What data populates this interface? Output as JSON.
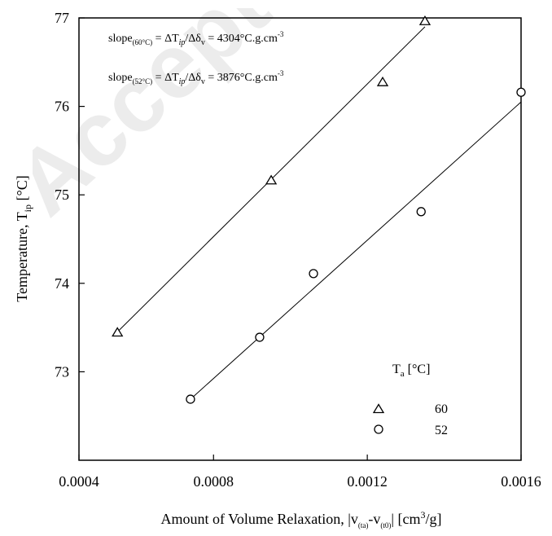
{
  "watermark": "Accepted",
  "chart_data": {
    "type": "scatter",
    "xlim": [
      0.00045,
      0.0016
    ],
    "ylim": [
      72,
      77
    ],
    "x_ticks": [
      0.0004,
      0.0008,
      0.0012,
      0.0016
    ],
    "x_tick_labels": [
      "0.0004",
      "0.0008",
      "0.0012",
      "0.0016"
    ],
    "y_ticks": [
      73,
      74,
      75,
      76,
      77
    ],
    "y_tick_labels": [
      "73",
      "74",
      "75",
      "76",
      "77"
    ],
    "xlabel": {
      "prefix": "Amount of Volume Relaxation, |v",
      "sub1": "(ta)",
      "mid": "-v",
      "sub2": "(t0)",
      "suffix1": "| [cm",
      "sup": "3",
      "suffix2": "/g]"
    },
    "ylabel": {
      "main": "Temperature, T",
      "sub": "ip",
      "unit": " [°C]"
    },
    "grid": false,
    "series": [
      {
        "name": "60",
        "marker": "triangle",
        "x": [
          0.00055,
          0.00095,
          0.00124,
          0.00135
        ],
        "y": [
          73.45,
          75.17,
          76.28,
          76.97
        ],
        "fit_line": {
          "x": [
            0.00055,
            0.00135
          ],
          "y": [
            73.45,
            76.9
          ]
        }
      },
      {
        "name": "52",
        "marker": "circle",
        "x": [
          0.00074,
          0.00092,
          0.00106,
          0.00134,
          0.0016
        ],
        "y": [
          72.69,
          73.39,
          74.11,
          74.81,
          76.16
        ],
        "fit_line": {
          "x": [
            0.00074,
            0.0016
          ],
          "y": [
            72.69,
            76.05
          ]
        }
      }
    ],
    "legend": {
      "title_main": "T",
      "title_sub": "a",
      "title_unit": " [°C]",
      "placement": "lower-right"
    },
    "annotations": [
      {
        "lead": "slope",
        "sub": "(60°C)",
        "eq1": " = ΔT",
        "sub2": "ip",
        "eq2": "/Δδ",
        "sub3": "v",
        "eq3": " = 4304°C.g.cm",
        "sup": "-3"
      },
      {
        "lead": "slope",
        "sub": "(52°C)",
        "eq1": " = ΔT",
        "sub2": "ip",
        "eq2": "/Δδ",
        "sub3": "v",
        "eq3": " = 3876°C.g.cm",
        "sup": "-3"
      }
    ]
  }
}
